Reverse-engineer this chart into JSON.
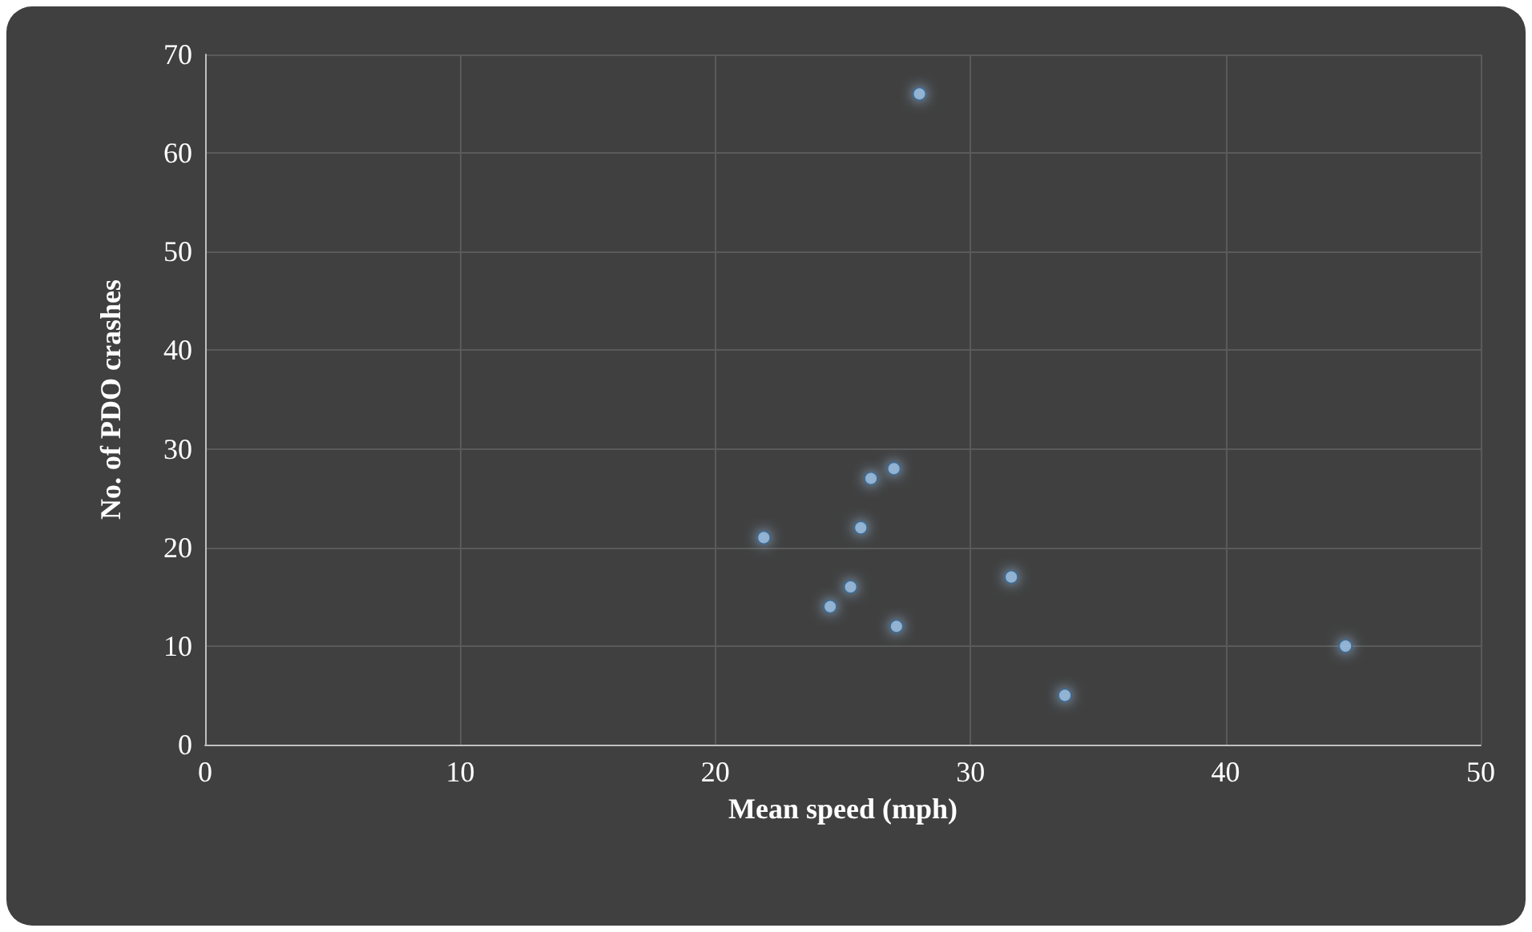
{
  "chart_data": {
    "type": "scatter",
    "xlabel": "Mean speed (mph)",
    "ylabel": "No. of PDO crashes",
    "x": [
      28.0,
      21.9,
      26.1,
      27.0,
      25.7,
      25.3,
      24.5,
      27.1,
      31.6,
      33.7,
      44.7
    ],
    "values": [
      66,
      21,
      27,
      28,
      22,
      16,
      14,
      12,
      17,
      5,
      10
    ],
    "color": "#9dc3e6",
    "marker": "circle",
    "xlim": [
      0,
      50
    ],
    "xticks": [
      0,
      10,
      20,
      30,
      40,
      50
    ],
    "ylim": [
      0,
      70
    ],
    "yticks": [
      0,
      10,
      20,
      30,
      40,
      50,
      60,
      70
    ],
    "grid": true
  }
}
